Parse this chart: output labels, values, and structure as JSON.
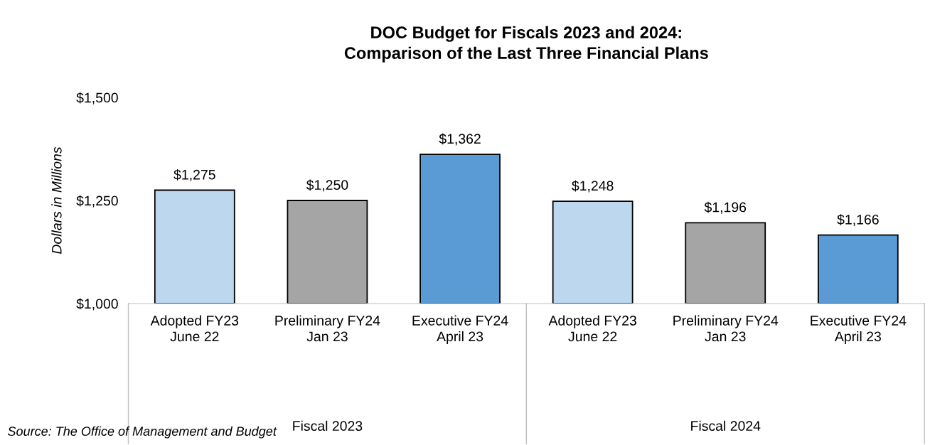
{
  "chart_data": {
    "type": "bar",
    "title": "DOC Budget for Fiscals 2023 and 2024:\nComparison of the Last Three Financial Plans",
    "ylabel": "Dollars in Millions",
    "categories": [
      "Adopted FY23\nJune 22",
      "Preliminary FY24\nJan 23",
      "Executive FY24\nApril 23",
      "Adopted FY23\nJune 22",
      "Preliminary FY24\nJan 23",
      "Executive FY24\nApril 23"
    ],
    "values": [
      1275,
      1250,
      1362,
      1248,
      1196,
      1166
    ],
    "value_labels": [
      "$1,275",
      "$1,250",
      "$1,362",
      "$1,248",
      "$1,196",
      "$1,166"
    ],
    "colors": [
      "#bdd7ee",
      "#a5a5a5",
      "#5b9bd5",
      "#bdd7ee",
      "#a5a5a5",
      "#5b9bd5"
    ],
    "ylim": [
      1000,
      1500
    ],
    "yticks": [
      {
        "value": 1000,
        "label": "$1,000"
      },
      {
        "value": 1250,
        "label": "$1,250"
      },
      {
        "value": 1500,
        "label": "$1,500"
      }
    ],
    "annotations": [
      "Fiscal 2023",
      "Fiscal 2024",
      "Source: The Office of Management and Budget"
    ],
    "grid": false,
    "legend": false
  }
}
